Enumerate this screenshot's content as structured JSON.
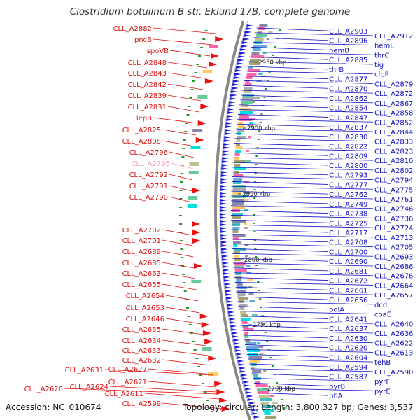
{
  "title": "Clostridium botulinum B str. Eklund 17B, complete genome",
  "accession_text": "Accession: NC_010674",
  "summary_text": "Topology: circular; Length: 3,800,327 bp; Genes: 3,537",
  "colors": {
    "left_label": "#e01010",
    "left_label_highlight": "#f0a0c8",
    "right_label": "#1010c0",
    "gene_arrow": "#1a1ad8",
    "backbone": "#888888",
    "forward_arrow": "#ee1111",
    "tick_mark": "#229922"
  },
  "kbp_markers": [
    "2950 kbp",
    "2900 kbp",
    "2850 kbp",
    "2800 kbp",
    "2750 kbp",
    "2700 kbp"
  ],
  "left_labels": [
    {
      "text": "CLL_A2882",
      "highlight": false
    },
    {
      "text": "pncB",
      "highlight": false
    },
    {
      "text": "spoVB",
      "highlight": false
    },
    {
      "text": "CLL_A2848",
      "highlight": false
    },
    {
      "text": "CLL_A2843",
      "highlight": false
    },
    {
      "text": "CLL_A2842",
      "highlight": false
    },
    {
      "text": "CLL_A2839",
      "highlight": false
    },
    {
      "text": "CLL_A2831",
      "highlight": false
    },
    {
      "text": "lepB",
      "highlight": false
    },
    {
      "text": "CLL_A2825",
      "highlight": false
    },
    {
      "text": "CLL_A2808",
      "highlight": false
    },
    {
      "text": "CLL_A2796",
      "highlight": false
    },
    {
      "text": "CLL_A2795",
      "highlight": true
    },
    {
      "text": "CLL_A2792",
      "highlight": false
    },
    {
      "text": "CLL_A2791",
      "highlight": false
    },
    {
      "text": "CLL_A2790",
      "highlight": false
    },
    {
      "text": "CLL_A2702",
      "highlight": false
    },
    {
      "text": "CLL_A2701",
      "highlight": false
    },
    {
      "text": "CLL_A2689",
      "highlight": false
    },
    {
      "text": "CLL_A2685",
      "highlight": false
    },
    {
      "text": "CLL_A2663",
      "highlight": false
    },
    {
      "text": "CLL_A2655",
      "highlight": false
    },
    {
      "text": "CLL_A2654",
      "highlight": false
    },
    {
      "text": "CLL_A2653",
      "highlight": false
    },
    {
      "text": "CLL_A2646",
      "highlight": false
    },
    {
      "text": "CLL_A2635",
      "highlight": false
    },
    {
      "text": "CLL_A2634",
      "highlight": false
    },
    {
      "text": "CLL_A2633",
      "highlight": false
    },
    {
      "text": "CLL_A2632",
      "highlight": false
    },
    {
      "text": "CLL_A2631",
      "highlight": false
    },
    {
      "text": "CLL_A2627",
      "highlight": false
    },
    {
      "text": "CLL_A2621",
      "highlight": false
    },
    {
      "text": "CLL_A2626",
      "highlight": false
    },
    {
      "text": "CLL_A2624",
      "highlight": false
    },
    {
      "text": "CLL_A2611",
      "highlight": false
    },
    {
      "text": "CLL_A2599",
      "highlight": false
    }
  ],
  "right_labels": [
    "CLL_A2903",
    "CLL_A2912",
    "CLL_A2896",
    "hemL",
    "hemB",
    "thrC",
    "CLL_A2885",
    "tig",
    "thrB",
    "clpP",
    "CLL_A2877",
    "CLL_A2879",
    "CLL_A2870",
    "CLL_A2872",
    "CLL_A2862",
    "CLL_A2867",
    "CLL_A2854",
    "CLL_A2858",
    "CLL_A2847",
    "CLL_A2852",
    "CLL_A2837",
    "CLL_A2844",
    "CLL_A2830",
    "CLL_A2833",
    "CLL_A2822",
    "CLL_A2823",
    "CLL_A2809",
    "CLL_A2810",
    "CLL_A2800",
    "CLL_A2802",
    "CLL_A2793",
    "CLL_A2794",
    "CLL_A2777",
    "CLL_A2775",
    "CLL_A2762",
    "CLL_A2761",
    "CLL_A2749",
    "CLL_A2746",
    "CLL_A2738",
    "CLL_A2736",
    "CLL_A2725",
    "CLL_A2724",
    "CLL_A2717",
    "CLL_A2713",
    "CLL_A2708",
    "CLL_A2705",
    "CLL_A2700",
    "CLL_A2693",
    "CLL_A2690",
    "CLL_A2686",
    "CLL_A2681",
    "CLL_A2676",
    "CLL_A2672",
    "CLL_A2664",
    "CLL_A2661",
    "CLL_A2657",
    "CLL_A2656",
    "dcd",
    "polA",
    "coaE",
    "CLL_A2641",
    "CLL_A2640",
    "CLL_A2637",
    "CLL_A2636",
    "CLL_A2630",
    "CLL_A2622",
    "CLL_A2620",
    "CLL_A2613",
    "CLL_A2604",
    "tehB",
    "CLL_A2594",
    "CLL_A2590",
    "CLL_A2587",
    "pyrF",
    "pyrB",
    "pyrE",
    "pflA"
  ]
}
